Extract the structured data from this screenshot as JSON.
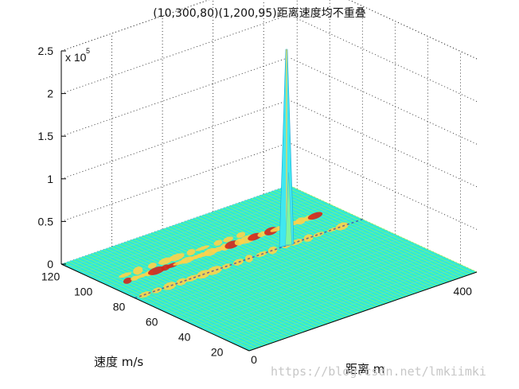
{
  "chart_data": {
    "type": "surface3d",
    "title": "(10,300,80)(1,200,95)距离速度均不重叠",
    "xlabel": "距离 m",
    "ylabel": "速度 m/s",
    "zlabel": "",
    "z_scale_label": "x 10",
    "z_scale_exponent": "5",
    "z_ticks": [
      "0",
      "0.5",
      "1",
      "1.5",
      "2",
      "2.5"
    ],
    "z_tick_values": [
      0,
      0.5,
      1,
      1.5,
      2,
      2.5
    ],
    "y_ticks": [
      "120",
      "100",
      "80",
      "60",
      "40",
      "20"
    ],
    "y_tick_values": [
      120,
      100,
      80,
      60,
      40,
      20
    ],
    "x_ticks": [
      "0",
      "400"
    ],
    "x_tick_values": [
      0,
      400
    ],
    "xlim": [
      0,
      450
    ],
    "ylim": [
      10,
      125
    ],
    "zlim": [
      0,
      2.5
    ],
    "grid": true,
    "colormap": "jet",
    "peak": {
      "x": 300,
      "y": 80,
      "z": 2.3
    },
    "colors": {
      "surface": "#2fe8d8",
      "mesh": "#9aff4f",
      "hot": "#d4261c",
      "warm": "#ffd24a"
    }
  },
  "watermark": "https://blog.csdn.net/lmkiimki"
}
